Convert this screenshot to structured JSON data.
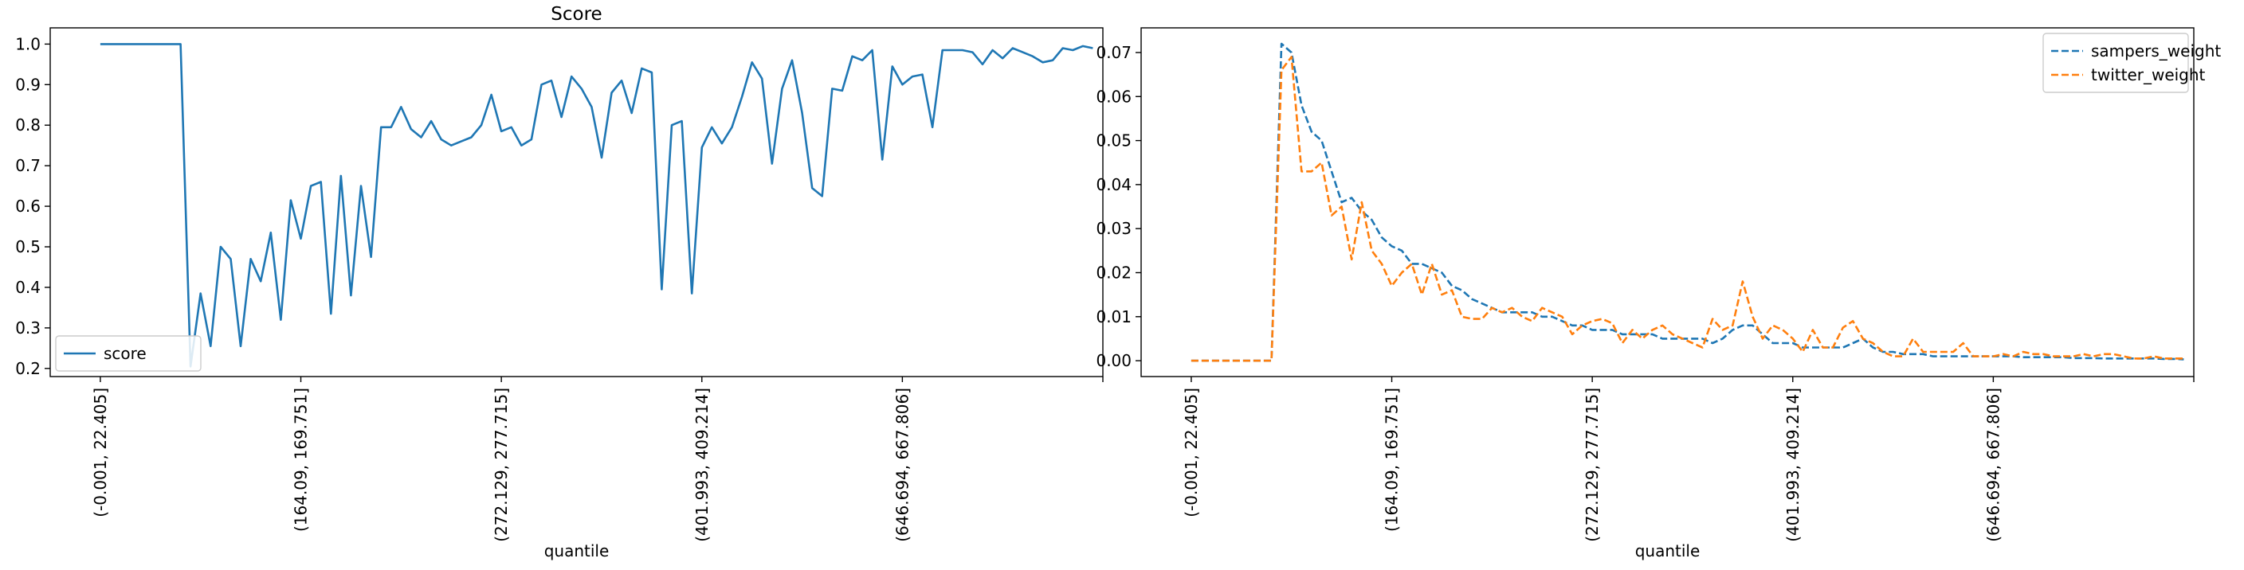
{
  "chart_data": [
    {
      "type": "line",
      "title": "Score",
      "xlabel": "quantile",
      "ylabel": "",
      "ylim": [
        0.18,
        1.04
      ],
      "yticks": [
        0.2,
        0.3,
        0.4,
        0.5,
        0.6,
        0.7,
        0.8,
        0.9,
        1.0
      ],
      "xlim": [
        -5,
        100
      ],
      "xticks": [
        0,
        20,
        40,
        60,
        80,
        100
      ],
      "xtick_labels": [
        "(-0.001, 22.405]",
        "(164.09, 169.751]",
        "(272.129, 277.715]",
        "(401.993, 409.214]",
        "(646.694, 667.806]",
        ""
      ],
      "grid": false,
      "legend_loc": "lower-left",
      "series": [
        {
          "name": "score",
          "color": "#1f77b4",
          "dash": "solid",
          "values": [
            1.0,
            1.0,
            1.0,
            1.0,
            1.0,
            1.0,
            1.0,
            1.0,
            1.0,
            0.205,
            0.385,
            0.255,
            0.5,
            0.47,
            0.255,
            0.47,
            0.415,
            0.535,
            0.32,
            0.615,
            0.52,
            0.65,
            0.66,
            0.335,
            0.675,
            0.38,
            0.65,
            0.475,
            0.795,
            0.795,
            0.845,
            0.79,
            0.77,
            0.81,
            0.765,
            0.75,
            0.76,
            0.77,
            0.8,
            0.875,
            0.785,
            0.795,
            0.75,
            0.765,
            0.9,
            0.91,
            0.82,
            0.92,
            0.89,
            0.845,
            0.72,
            0.88,
            0.91,
            0.83,
            0.94,
            0.93,
            0.395,
            0.8,
            0.81,
            0.385,
            0.745,
            0.795,
            0.755,
            0.795,
            0.87,
            0.955,
            0.915,
            0.705,
            0.89,
            0.96,
            0.83,
            0.645,
            0.625,
            0.89,
            0.885,
            0.97,
            0.96,
            0.985,
            0.715,
            0.945,
            0.9,
            0.92,
            0.925,
            0.795,
            0.985,
            0.985,
            0.985,
            0.98,
            0.95,
            0.985,
            0.965,
            0.99,
            0.98,
            0.97,
            0.955,
            0.96,
            0.99,
            0.985,
            0.995,
            0.99
          ]
        }
      ]
    },
    {
      "type": "line",
      "title": "",
      "xlabel": "quantile",
      "ylabel": "",
      "ylim": [
        -0.0036,
        0.0756
      ],
      "yticks": [
        0.0,
        0.01,
        0.02,
        0.03,
        0.04,
        0.05,
        0.06,
        0.07
      ],
      "ytick_labels": [
        "0.00",
        "0.01",
        "0.02",
        "0.03",
        "0.04",
        "0.05",
        "0.06",
        "0.07"
      ],
      "xlim": [
        -5,
        100
      ],
      "xticks": [
        0,
        20,
        40,
        60,
        80,
        100
      ],
      "xtick_labels": [
        "(-0.001, 22.405]",
        "(164.09, 169.751]",
        "(272.129, 277.715]",
        "(401.993, 409.214]",
        "(646.694, 667.806]",
        ""
      ],
      "grid": false,
      "legend_loc": "top-right",
      "series": [
        {
          "name": "sampers_weight",
          "color": "#1f77b4",
          "dash": "dashed",
          "values": [
            0.0,
            0.0,
            0.0,
            0.0,
            0.0,
            0.0,
            0.0,
            0.0,
            0.0,
            0.072,
            0.07,
            0.058,
            0.052,
            0.05,
            0.043,
            0.036,
            0.037,
            0.034,
            0.032,
            0.028,
            0.026,
            0.025,
            0.022,
            0.022,
            0.021,
            0.02,
            0.017,
            0.016,
            0.014,
            0.013,
            0.012,
            0.011,
            0.011,
            0.011,
            0.011,
            0.01,
            0.01,
            0.009,
            0.008,
            0.008,
            0.007,
            0.007,
            0.007,
            0.006,
            0.006,
            0.006,
            0.006,
            0.005,
            0.005,
            0.005,
            0.005,
            0.005,
            0.004,
            0.005,
            0.007,
            0.008,
            0.008,
            0.006,
            0.004,
            0.004,
            0.004,
            0.003,
            0.003,
            0.003,
            0.003,
            0.003,
            0.004,
            0.005,
            0.003,
            0.002,
            0.002,
            0.0015,
            0.0015,
            0.0015,
            0.001,
            0.001,
            0.001,
            0.001,
            0.001,
            0.001,
            0.001,
            0.001,
            0.001,
            0.0008,
            0.0008,
            0.0008,
            0.0008,
            0.0008,
            0.0006,
            0.0006,
            0.0006,
            0.0005,
            0.0005,
            0.0005,
            0.0005,
            0.0005,
            0.0005,
            0.0004,
            0.0004,
            0.0003
          ]
        },
        {
          "name": "twitter_weight",
          "color": "#ff7f0e",
          "dash": "dashed",
          "values": [
            0.0,
            0.0,
            0.0,
            0.0,
            0.0,
            0.0,
            0.0,
            0.0,
            0.0,
            0.066,
            0.069,
            0.043,
            0.043,
            0.045,
            0.033,
            0.035,
            0.023,
            0.036,
            0.025,
            0.022,
            0.017,
            0.02,
            0.022,
            0.015,
            0.022,
            0.015,
            0.016,
            0.01,
            0.0095,
            0.0095,
            0.012,
            0.011,
            0.012,
            0.01,
            0.009,
            0.012,
            0.011,
            0.01,
            0.006,
            0.008,
            0.009,
            0.0095,
            0.0085,
            0.004,
            0.007,
            0.005,
            0.007,
            0.008,
            0.006,
            0.005,
            0.004,
            0.003,
            0.0095,
            0.007,
            0.008,
            0.018,
            0.01,
            0.005,
            0.008,
            0.007,
            0.005,
            0.002,
            0.007,
            0.003,
            0.003,
            0.0075,
            0.009,
            0.005,
            0.004,
            0.002,
            0.001,
            0.001,
            0.005,
            0.002,
            0.002,
            0.002,
            0.002,
            0.004,
            0.001,
            0.001,
            0.001,
            0.0015,
            0.001,
            0.002,
            0.0015,
            0.0015,
            0.001,
            0.001,
            0.001,
            0.0015,
            0.001,
            0.0015,
            0.0015,
            0.001,
            0.0005,
            0.0005,
            0.001,
            0.0005,
            0.0005,
            0.0005
          ]
        }
      ]
    }
  ]
}
